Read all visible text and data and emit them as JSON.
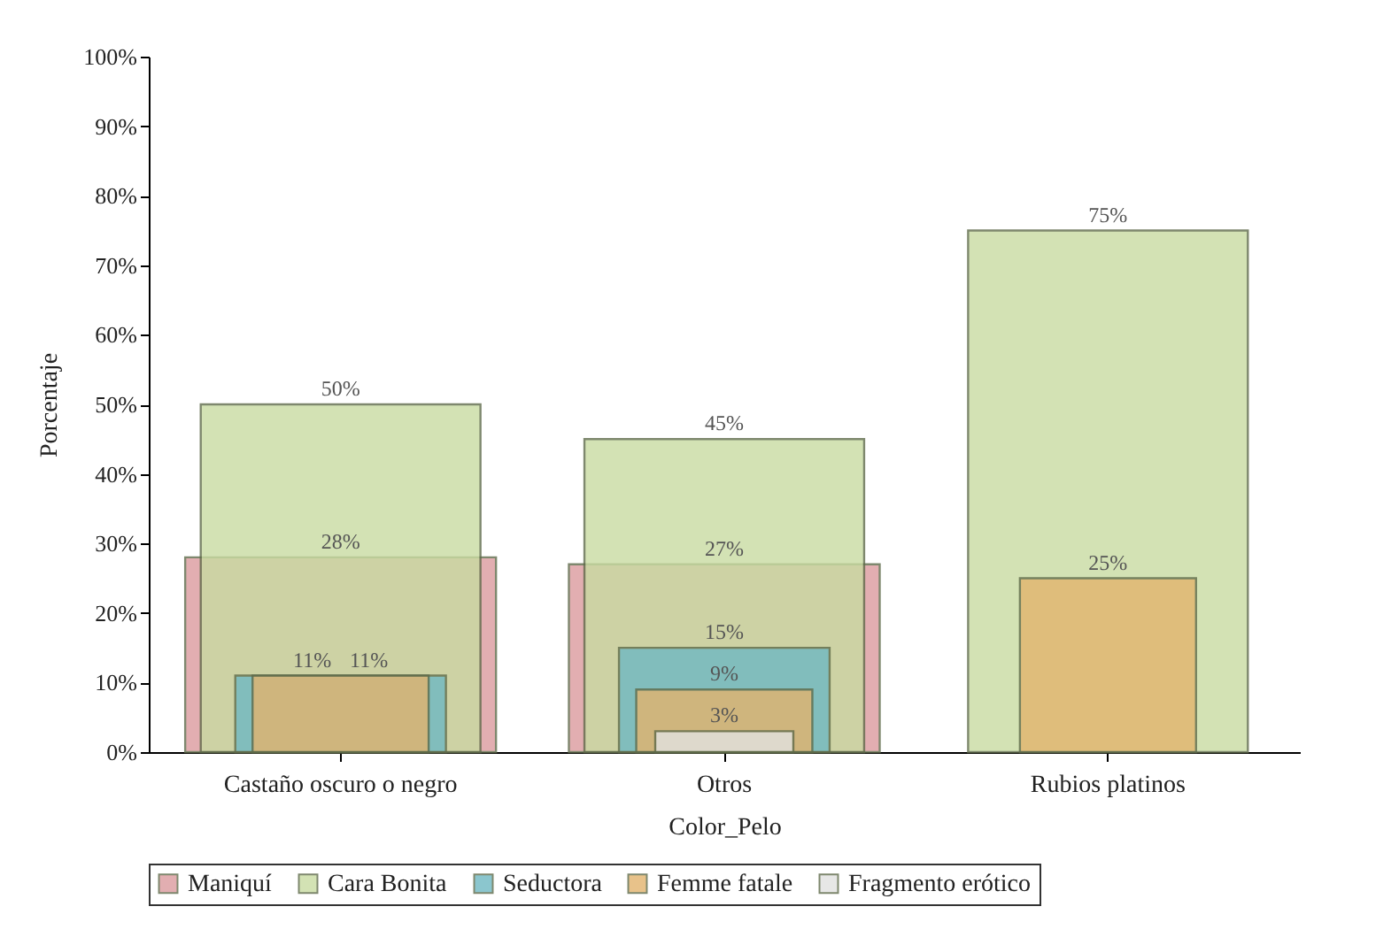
{
  "chart_data": {
    "type": "bar",
    "xlabel": "Color_Pelo",
    "ylabel": "Porcentaje",
    "categories": [
      "Castaño oscuro o negro",
      "Otros",
      "Rubios platinos"
    ],
    "series": [
      {
        "name": "Maniquí",
        "color": "#dc9a9e",
        "values": [
          28,
          27,
          null
        ],
        "value_labels": [
          "28%",
          "27%",
          null
        ]
      },
      {
        "name": "Cara Bonita",
        "color": "#c9dca2",
        "values": [
          50,
          45,
          75
        ],
        "value_labels": [
          "50%",
          "45%",
          "75%"
        ]
      },
      {
        "name": "Seductora",
        "color": "#6fb9c2",
        "values": [
          11,
          15,
          null
        ],
        "value_labels": [
          "11%",
          "15%",
          null
        ]
      },
      {
        "name": "Femme fatale",
        "color": "#e3b46e",
        "values": [
          11,
          9,
          25
        ],
        "value_labels": [
          "11%",
          "9%",
          "25%"
        ]
      },
      {
        "name": "Fragmento erótico",
        "color": "#e2e2e0",
        "values": [
          null,
          3,
          null
        ],
        "value_labels": [
          null,
          "3%",
          null
        ]
      }
    ],
    "ylim": [
      0,
      100
    ],
    "yticks": [
      {
        "value": 0,
        "label": "0%"
      },
      {
        "value": 10,
        "label": "10%"
      },
      {
        "value": 20,
        "label": "20%"
      },
      {
        "value": 30,
        "label": "30%"
      },
      {
        "value": 40,
        "label": "40%"
      },
      {
        "value": 50,
        "label": "50%"
      },
      {
        "value": 60,
        "label": "60%"
      },
      {
        "value": 70,
        "label": "70%"
      },
      {
        "value": 80,
        "label": "80%"
      },
      {
        "value": 90,
        "label": "90%"
      },
      {
        "value": 100,
        "label": "100%"
      }
    ],
    "legend": "bottom",
    "grid": false
  }
}
